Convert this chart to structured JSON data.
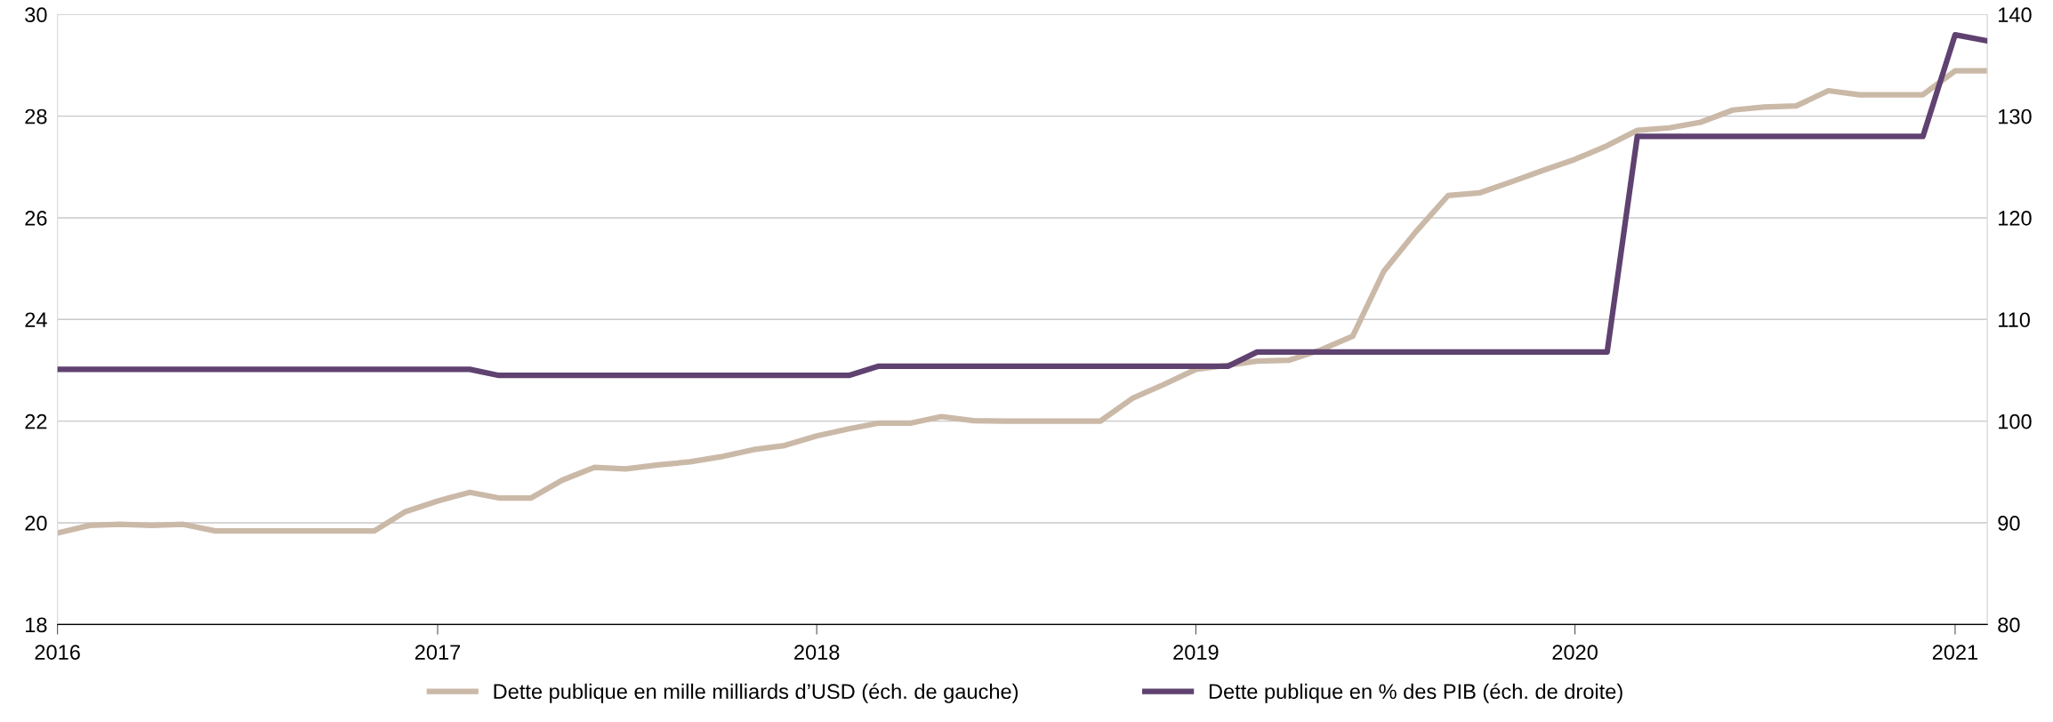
{
  "chart_data": {
    "type": "line",
    "x": [
      "2016-01",
      "2016-02",
      "2016-03",
      "2016-04",
      "2016-05",
      "2016-06",
      "2016-07",
      "2016-08",
      "2016-09",
      "2016-10",
      "2016-11",
      "2016-12",
      "2017-01",
      "2017-02",
      "2017-03",
      "2017-04",
      "2017-05",
      "2017-06",
      "2017-07",
      "2017-08",
      "2017-09",
      "2017-10",
      "2017-11",
      "2017-12",
      "2018-01",
      "2018-02",
      "2018-03",
      "2018-04",
      "2018-05",
      "2018-06",
      "2018-07",
      "2018-08",
      "2018-09",
      "2018-10",
      "2018-11",
      "2018-12",
      "2019-01",
      "2019-02",
      "2019-03",
      "2019-04",
      "2019-05",
      "2019-06",
      "2019-07",
      "2019-08",
      "2019-09",
      "2019-10",
      "2019-11",
      "2019-12",
      "2020-01",
      "2020-02",
      "2020-03",
      "2020-04",
      "2020-05",
      "2020-06",
      "2020-07",
      "2020-08",
      "2020-09",
      "2020-10",
      "2020-11",
      "2020-12",
      "2021-01",
      "2021-02"
    ],
    "series": [
      {
        "name": "Dette publique en mille milliards d’USD (éch. de gauche)",
        "color": "#cbb9a8",
        "values": [
          19.8,
          19.95,
          19.97,
          19.95,
          19.97,
          19.84,
          19.84,
          19.84,
          19.84,
          19.84,
          19.84,
          20.22,
          20.43,
          20.6,
          20.49,
          20.49,
          20.84,
          21.09,
          21.06,
          21.14,
          21.2,
          21.3,
          21.44,
          21.52,
          21.71,
          21.85,
          21.96,
          21.96,
          22.09,
          22.01,
          22.0,
          22.0,
          22.0,
          22.0,
          22.45,
          22.72,
          23.02,
          23.1,
          23.18,
          23.2,
          23.4,
          23.67,
          24.95,
          25.73,
          26.44,
          26.49,
          26.71,
          26.93,
          27.15,
          27.42,
          27.72,
          27.77,
          27.88,
          28.12,
          28.18,
          28.2,
          28.5,
          28.42,
          28.42,
          28.42,
          28.89,
          28.89
        ]
      },
      {
        "name": "Dette publique en % des PIB (éch. de droite)",
        "color": "#5f4270",
        "axis": "y2",
        "values": [
          105.1,
          105.1,
          105.1,
          105.1,
          105.1,
          105.1,
          105.1,
          105.1,
          105.1,
          105.1,
          105.1,
          105.1,
          105.1,
          105.1,
          104.5,
          104.5,
          104.5,
          104.5,
          104.5,
          104.5,
          104.5,
          104.5,
          104.5,
          104.5,
          104.5,
          104.5,
          105.4,
          105.4,
          105.4,
          105.4,
          105.4,
          105.4,
          105.4,
          105.4,
          105.4,
          105.4,
          105.4,
          105.4,
          106.8,
          106.8,
          106.8,
          106.8,
          106.8,
          106.8,
          106.8,
          106.8,
          106.8,
          106.8,
          106.8,
          106.8,
          128,
          128,
          128,
          128,
          128,
          128,
          128,
          128,
          128,
          128,
          138,
          137.4
        ]
      }
    ],
    "xlim": [
      "2016-01",
      "2021-02"
    ],
    "xticks": [
      "2016",
      "2017",
      "2018",
      "2019",
      "2020",
      "2021"
    ],
    "ylim": [
      18,
      30
    ],
    "yticks": [
      18,
      20,
      22,
      24,
      26,
      28,
      30
    ],
    "y2lim": [
      80,
      140
    ],
    "y2ticks": [
      80,
      90,
      100,
      110,
      120,
      130,
      140
    ],
    "grid": "y",
    "legend": "bottom"
  }
}
